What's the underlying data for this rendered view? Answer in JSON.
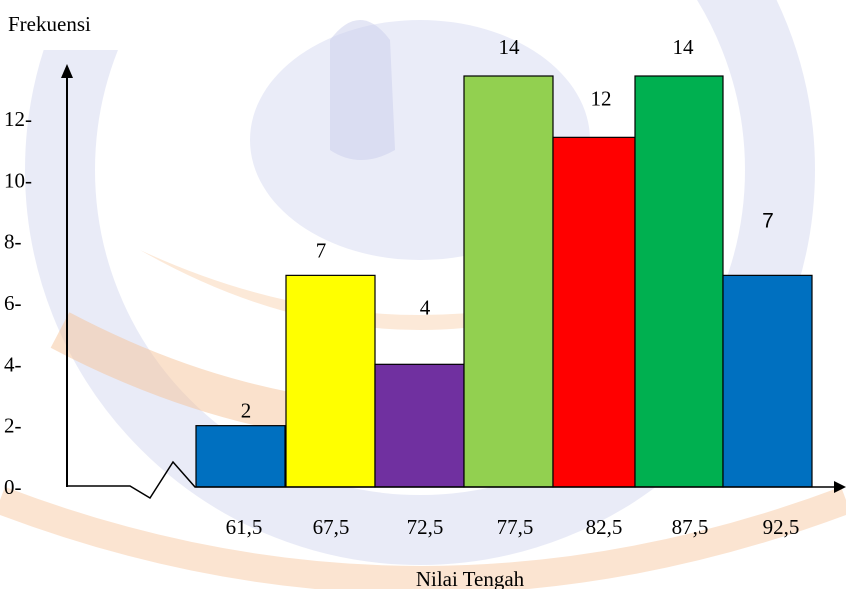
{
  "chart_data": {
    "type": "bar",
    "ylabel": "Frekuensi",
    "xlabel": "Nilai Tengah",
    "categories": [
      "61,5",
      "67,5",
      "72,5",
      "77,5",
      "82,5",
      "87,5",
      "92,5"
    ],
    "values": [
      2,
      7,
      4,
      14,
      12,
      14,
      7
    ],
    "bar_values_drawn": [
      2,
      6.9,
      4,
      13.4,
      11.4,
      13.4,
      6.9
    ],
    "data_labels": [
      "2",
      "7",
      "4",
      "14",
      "12",
      "14",
      "7"
    ],
    "bar_colors": [
      "#0070C0",
      "#FFFF00",
      "#7030A0",
      "#92D050",
      "#FF0000",
      "#00B050",
      "#0070C0"
    ],
    "yticks": [
      "0-",
      "2-",
      "4-",
      "6-",
      "8-",
      "10-",
      "12-"
    ],
    "ytick_values": [
      0,
      2,
      4,
      6,
      8,
      10,
      12
    ],
    "ylim": [
      0,
      13.4
    ],
    "axis_break": true,
    "grid": false
  },
  "colors": {
    "axis": "#000000",
    "watermark_orange": "#F5B07A",
    "watermark_blue": "#C9CDEB"
  }
}
